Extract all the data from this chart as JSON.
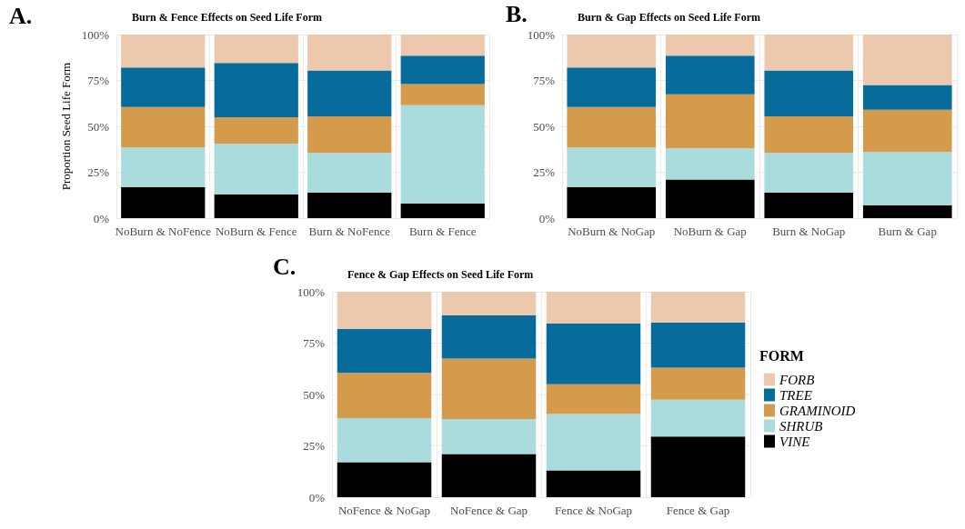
{
  "chart_data": [
    {
      "type": "bar",
      "stacked": true,
      "title": "Burn & Fence Effects on Seed Life Form",
      "ylabel": "Proportion Seed Life Form",
      "annotations": [
        "A."
      ],
      "categories": [
        "NoBurn & NoFence",
        "NoBurn & Fence",
        "Burn & NoFence",
        "Burn & Fence"
      ],
      "series": [
        {
          "color": "#000000",
          "values": [
            17,
            13,
            14,
            8
          ]
        },
        {
          "color": "#aadcde",
          "values": [
            21.5,
            27.5,
            21.5,
            53.5
          ]
        },
        {
          "color": "#d49b4d",
          "values": [
            22,
            14.5,
            20,
            11.5
          ]
        },
        {
          "color": "#076b9b",
          "values": [
            21.5,
            29.5,
            25,
            15.5
          ]
        },
        {
          "color": "#ecc9ad",
          "values": [
            18,
            15.5,
            19.5,
            11.5
          ]
        }
      ],
      "ylim": [
        0,
        100
      ],
      "yticks": [
        {
          "value": 0,
          "label": "0%"
        },
        {
          "value": 25,
          "label": "25%"
        },
        {
          "value": 50,
          "label": "50%"
        },
        {
          "value": 75,
          "label": "75%"
        },
        {
          "value": 100,
          "label": "100%"
        }
      ],
      "grid": true,
      "legend": false
    },
    {
      "type": "bar",
      "stacked": true,
      "title": "Burn & Gap Effects on Seed Life Form",
      "annotations": [
        "B."
      ],
      "categories": [
        "NoBurn & NoGap",
        "NoBurn & Gap",
        "Burn & NoGap",
        "Burn & Gap"
      ],
      "series": [
        {
          "color": "#000000",
          "values": [
            17,
            21,
            14,
            7
          ]
        },
        {
          "color": "#aadcde",
          "values": [
            21.5,
            17,
            21.5,
            29
          ]
        },
        {
          "color": "#d49b4d",
          "values": [
            22,
            29.5,
            20,
            23
          ]
        },
        {
          "color": "#076b9b",
          "values": [
            21.5,
            21,
            25,
            13.5
          ]
        },
        {
          "color": "#ecc9ad",
          "values": [
            18,
            11.5,
            19.5,
            27.5
          ]
        }
      ],
      "ylim": [
        0,
        100
      ],
      "yticks": [
        {
          "value": 0,
          "label": "0%"
        },
        {
          "value": 25,
          "label": "25%"
        },
        {
          "value": 50,
          "label": "50%"
        },
        {
          "value": 75,
          "label": "75%"
        },
        {
          "value": 100,
          "label": "100%"
        }
      ],
      "grid": true,
      "legend": false
    },
    {
      "type": "bar",
      "stacked": true,
      "title": "Fence & Gap Effects on Seed Life Form",
      "annotations": [
        "C."
      ],
      "legend_title": "FORM",
      "categories": [
        "NoFence & NoGap",
        "NoFence & Gap",
        "Fence & NoGap",
        "Fence & Gap"
      ],
      "series": [
        {
          "name": "VINE",
          "color": "#000000",
          "values": [
            17,
            21,
            13,
            29.5
          ]
        },
        {
          "name": "SHRUB",
          "color": "#aadcde",
          "values": [
            21.5,
            17,
            27.5,
            18
          ]
        },
        {
          "name": "GRAMINOID",
          "color": "#d49b4d",
          "values": [
            22,
            29.5,
            14.5,
            15.5
          ]
        },
        {
          "name": "TREE",
          "color": "#076b9b",
          "values": [
            21.5,
            21,
            29.5,
            22
          ]
        },
        {
          "name": "FORB",
          "color": "#ecc9ad",
          "values": [
            18,
            11.5,
            15.5,
            15
          ]
        }
      ],
      "ylim": [
        0,
        100
      ],
      "yticks": [
        {
          "value": 0,
          "label": "0%"
        },
        {
          "value": 25,
          "label": "25%"
        },
        {
          "value": 50,
          "label": "50%"
        },
        {
          "value": 75,
          "label": "75%"
        },
        {
          "value": 100,
          "label": "100%"
        }
      ],
      "grid": true,
      "legend": "right"
    }
  ]
}
